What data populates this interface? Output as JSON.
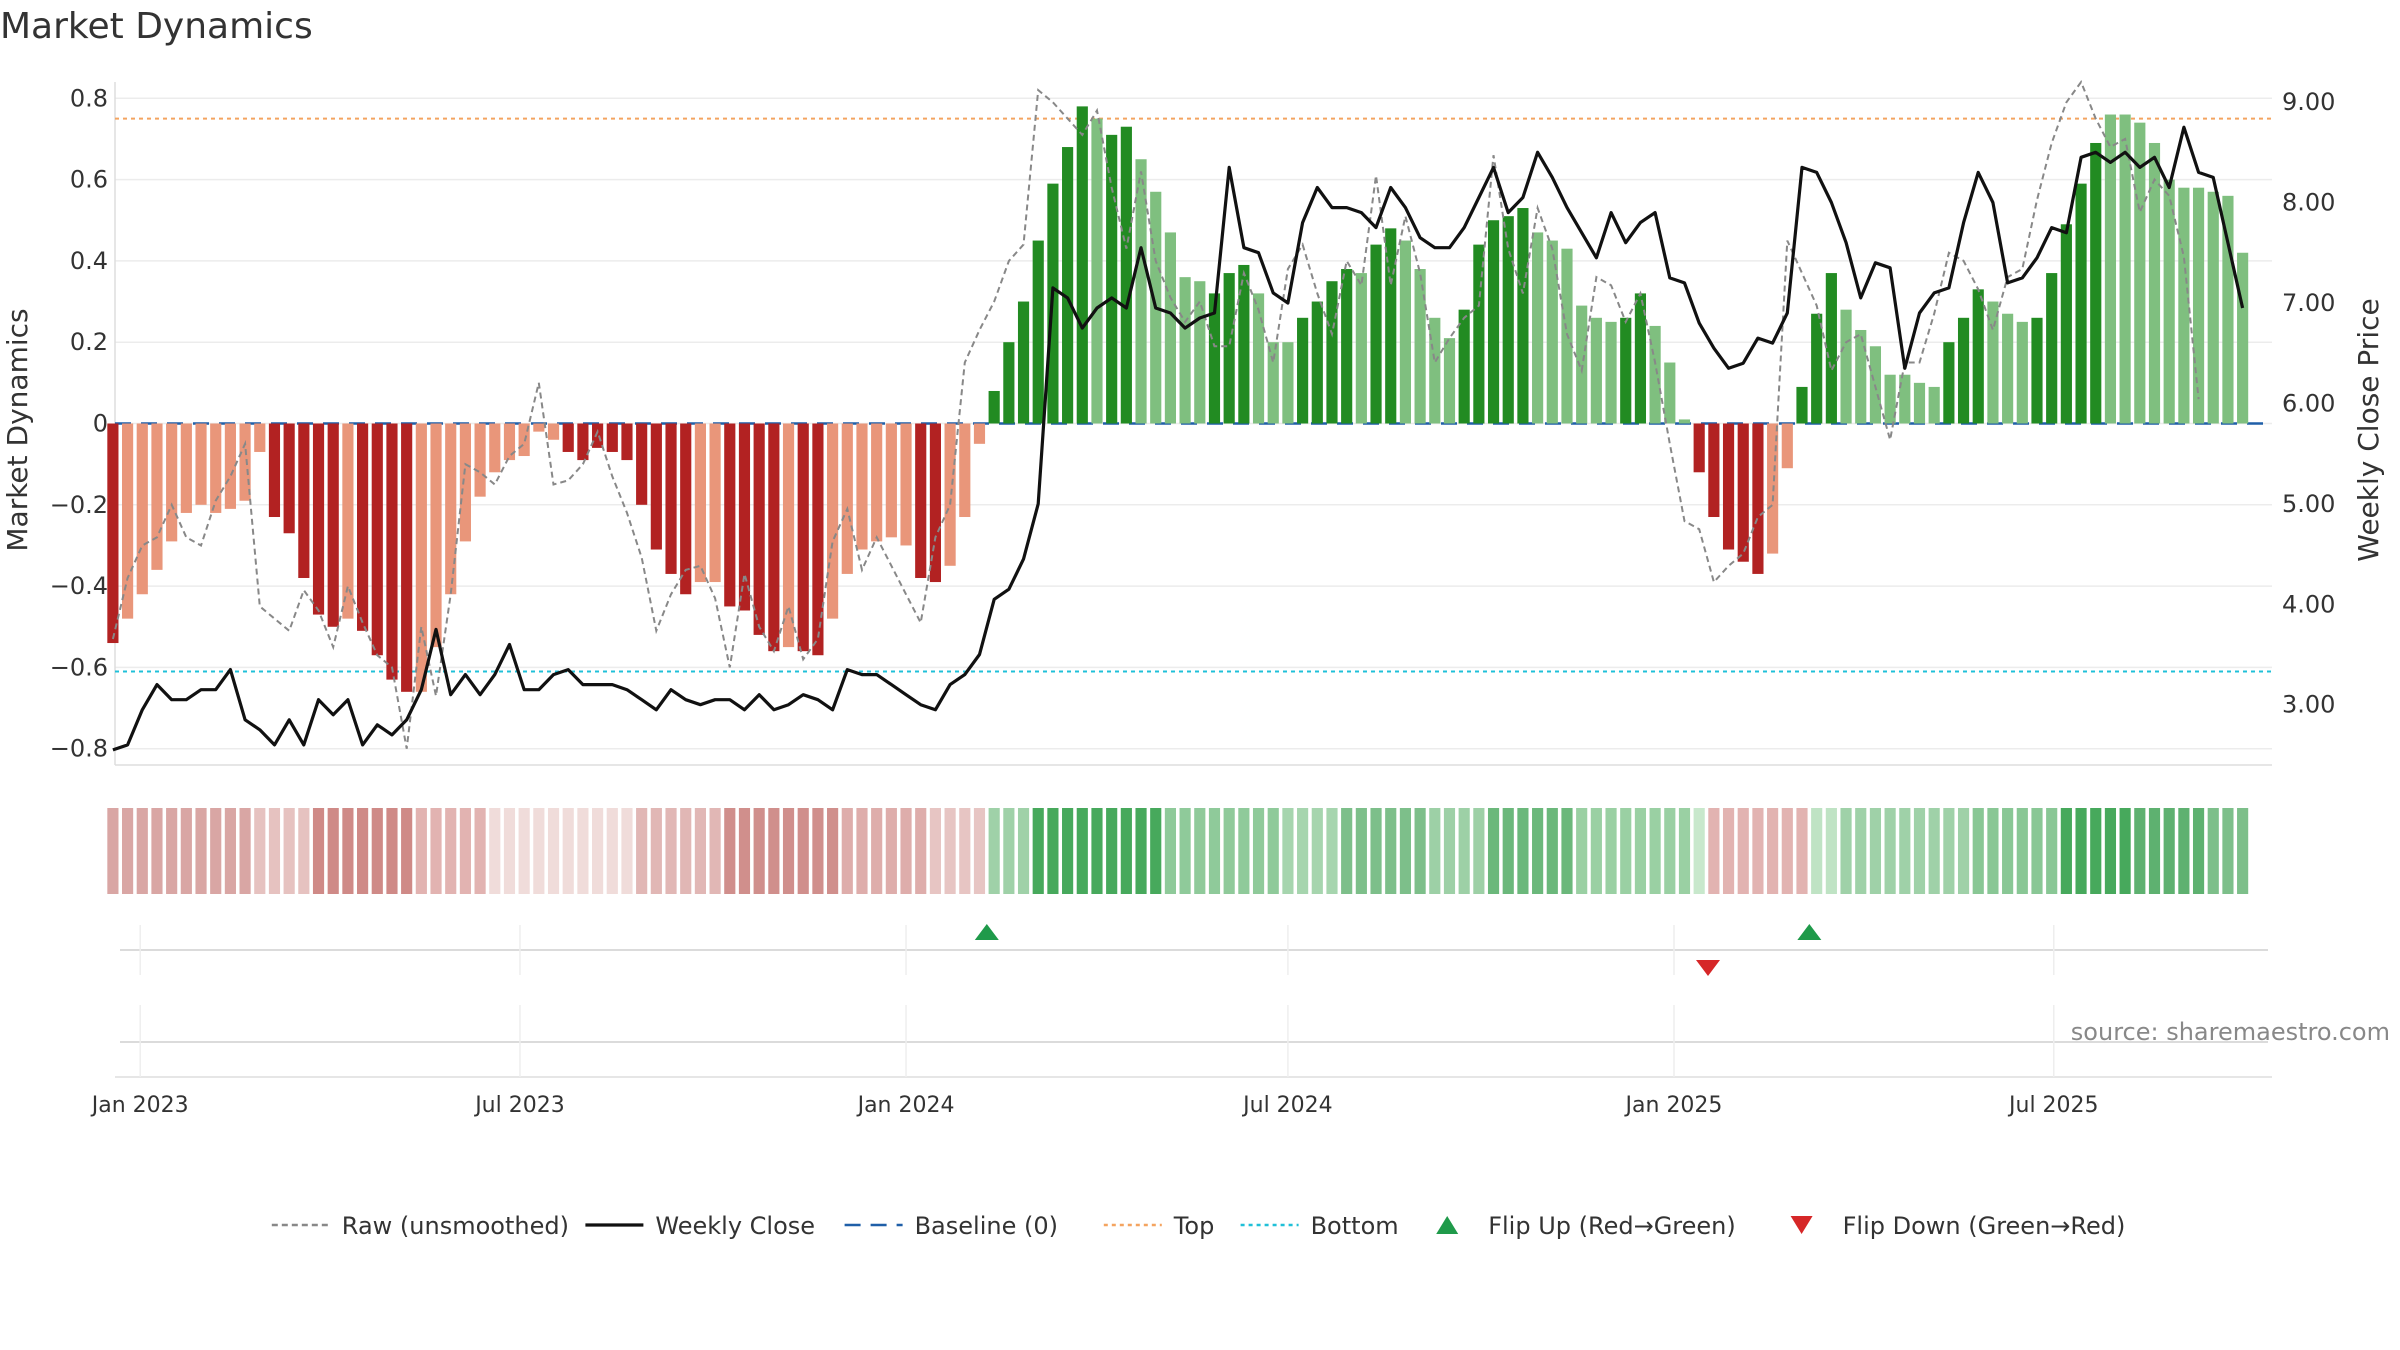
{
  "chart_data": {
    "type": "bar",
    "title": "Market Dynamics",
    "ylabel_left": "Market Dynamics",
    "ylabel_right": "Weekly Close Price",
    "source": "source: sharemaestro.com",
    "ylim_left": [
      -0.84,
      0.84
    ],
    "ylim_right": [
      2.4,
      9.2
    ],
    "yticks_left": [
      "0.8",
      "0.6",
      "0.4",
      "0.2",
      "0",
      "−0.2",
      "−0.4",
      "−0.6",
      "−0.8"
    ],
    "yticks_left_values": [
      0.8,
      0.6,
      0.4,
      0.2,
      0,
      -0.2,
      -0.4,
      -0.6,
      -0.8
    ],
    "yticks_right": [
      "9.00",
      "8.00",
      "7.00",
      "6.00",
      "5.00",
      "4.00",
      "3.00"
    ],
    "yticks_right_values": [
      9,
      8,
      7,
      6,
      5,
      4,
      3
    ],
    "x_start": "2022-12-20",
    "x_end": "2025-10-13",
    "xticks": [
      {
        "date": "2023-01-01",
        "label": "Jan 2023"
      },
      {
        "date": "2023-07-01",
        "label": "Jul 2023"
      },
      {
        "date": "2024-01-01",
        "label": "Jan 2024"
      },
      {
        "date": "2024-07-01",
        "label": "Jul 2024"
      },
      {
        "date": "2025-01-01",
        "label": "Jan 2025"
      },
      {
        "date": "2025-07-01",
        "label": "Jul 2025"
      }
    ],
    "first_week": "2022-12-19",
    "grid": true,
    "legend_position": "bottom",
    "reference_lines": {
      "baseline": 0,
      "top": 0.75,
      "bottom": -0.61
    },
    "colors": {
      "strong_up": "#228B22",
      "weak_up": "#7FBF7F",
      "strong_down": "#B22222",
      "weak_down": "#E9967A",
      "raw": "#888888",
      "close": "#111111",
      "baseline": "#1f5fa8",
      "top": "#f4a460",
      "bottom": "#20c0d8",
      "flip_up": "#1f9a4a",
      "flip_down": "#d62728"
    },
    "series": [
      {
        "name": "Market Dynamics",
        "values": [
          -0.54,
          -0.48,
          -0.42,
          -0.36,
          -0.29,
          -0.22,
          -0.2,
          -0.22,
          -0.21,
          -0.19,
          -0.07,
          -0.23,
          -0.27,
          -0.38,
          -0.47,
          -0.5,
          -0.48,
          -0.51,
          -0.57,
          -0.63,
          -0.66,
          -0.66,
          -0.55,
          -0.42,
          -0.29,
          -0.18,
          -0.12,
          -0.09,
          -0.08,
          -0.02,
          -0.04,
          -0.07,
          -0.09,
          -0.06,
          -0.07,
          -0.09,
          -0.2,
          -0.31,
          -0.37,
          -0.42,
          -0.39,
          -0.39,
          -0.45,
          -0.46,
          -0.52,
          -0.56,
          -0.55,
          -0.56,
          -0.57,
          -0.48,
          -0.37,
          -0.31,
          -0.29,
          -0.28,
          -0.3,
          -0.38,
          -0.39,
          -0.35,
          -0.23,
          -0.05,
          0.08,
          0.2,
          0.3,
          0.45,
          0.59,
          0.68,
          0.78,
          0.75,
          0.71,
          0.73,
          0.65,
          0.57,
          0.47,
          0.36,
          0.35,
          0.32,
          0.37,
          0.39,
          0.32,
          0.2,
          0.2,
          0.26,
          0.3,
          0.35,
          0.38,
          0.37,
          0.44,
          0.48,
          0.45,
          0.38,
          0.26,
          0.21,
          0.28,
          0.44,
          0.5,
          0.51,
          0.53,
          0.47,
          0.45,
          0.43,
          0.29,
          0.26,
          0.25,
          0.26,
          0.32,
          0.24,
          0.15,
          0.01,
          -0.12,
          -0.23,
          -0.31,
          -0.34,
          -0.37,
          -0.32,
          -0.11,
          0.09,
          0.27,
          0.37,
          0.28,
          0.23,
          0.19,
          0.12,
          0.12,
          0.1,
          0.09,
          0.2,
          0.26,
          0.33,
          0.3,
          0.27,
          0.25,
          0.26,
          0.37,
          0.49,
          0.59,
          0.69,
          0.76,
          0.76,
          0.74,
          0.69,
          0.6,
          0.58,
          0.58,
          0.57,
          0.56,
          0.42
        ],
        "strength": [
          "s",
          "w",
          "w",
          "w",
          "w",
          "w",
          "w",
          "w",
          "w",
          "w",
          "w",
          "s",
          "s",
          "s",
          "s",
          "s",
          "w",
          "s",
          "s",
          "s",
          "s",
          "w",
          "w",
          "w",
          "w",
          "w",
          "w",
          "w",
          "w",
          "w",
          "w",
          "s",
          "s",
          "s",
          "s",
          "s",
          "s",
          "s",
          "s",
          "s",
          "w",
          "w",
          "s",
          "s",
          "s",
          "s",
          "w",
          "s",
          "s",
          "w",
          "w",
          "w",
          "w",
          "w",
          "w",
          "s",
          "s",
          "w",
          "w",
          "w",
          "s",
          "s",
          "s",
          "s",
          "s",
          "s",
          "s",
          "w",
          "s",
          "s",
          "w",
          "w",
          "w",
          "w",
          "w",
          "s",
          "s",
          "s",
          "w",
          "w",
          "w",
          "s",
          "s",
          "s",
          "s",
          "w",
          "s",
          "s",
          "w",
          "w",
          "w",
          "w",
          "s",
          "s",
          "s",
          "s",
          "s",
          "w",
          "w",
          "w",
          "w",
          "w",
          "w",
          "s",
          "s",
          "w",
          "w",
          "w",
          "s",
          "s",
          "s",
          "s",
          "s",
          "w",
          "w",
          "s",
          "s",
          "s",
          "w",
          "w",
          "w",
          "w",
          "w",
          "w",
          "w",
          "s",
          "s",
          "s",
          "w",
          "w",
          "w",
          "s",
          "s",
          "s",
          "s",
          "s",
          "w",
          "w",
          "w",
          "w",
          "w",
          "w",
          "w",
          "w",
          "w",
          "w"
        ]
      },
      {
        "name": "Weekly Close",
        "values": [
          2.55,
          2.6,
          2.95,
          3.2,
          3.05,
          3.05,
          3.15,
          3.15,
          3.35,
          2.85,
          2.75,
          2.6,
          2.85,
          2.6,
          3.05,
          2.9,
          3.05,
          2.6,
          2.8,
          2.7,
          2.85,
          3.15,
          3.75,
          3.1,
          3.3,
          3.1,
          3.3,
          3.6,
          3.15,
          3.15,
          3.3,
          3.35,
          3.2,
          3.2,
          3.2,
          3.15,
          3.05,
          2.95,
          3.15,
          3.05,
          3,
          3.05,
          3.05,
          2.95,
          3.1,
          2.95,
          3,
          3.1,
          3.05,
          2.95,
          3.35,
          3.3,
          3.3,
          3.2,
          3.1,
          3,
          2.95,
          3.2,
          3.3,
          3.5,
          4.05,
          4.15,
          4.45,
          5,
          7.15,
          7.05,
          6.75,
          6.95,
          7.05,
          6.95,
          7.55,
          6.95,
          6.9,
          6.75,
          6.85,
          6.9,
          8.35,
          7.55,
          7.5,
          7.1,
          7,
          7.8,
          8.15,
          7.95,
          7.95,
          7.9,
          7.75,
          8.15,
          7.95,
          7.65,
          7.55,
          7.55,
          7.75,
          8.05,
          8.35,
          7.9,
          8.05,
          8.5,
          8.25,
          7.95,
          7.7,
          7.45,
          7.9,
          7.6,
          7.8,
          7.9,
          7.25,
          7.2,
          6.8,
          6.55,
          6.35,
          6.4,
          6.65,
          6.6,
          6.9,
          8.35,
          8.3,
          8.0,
          7.6,
          7.05,
          7.4,
          7.35,
          6.35,
          6.9,
          7.1,
          7.15,
          7.8,
          8.3,
          8.0,
          7.2,
          7.25,
          7.45,
          7.75,
          7.7,
          8.45,
          8.5,
          8.4,
          8.5,
          8.35,
          8.45,
          8.15,
          8.75,
          8.3,
          8.25,
          7.6,
          6.95
        ]
      },
      {
        "name": "Raw (unsmoothed)",
        "values": [
          -0.53,
          -0.38,
          -0.3,
          -0.28,
          -0.2,
          -0.28,
          -0.3,
          -0.19,
          -0.13,
          -0.05,
          -0.45,
          -0.48,
          -0.51,
          -0.41,
          -0.46,
          -0.55,
          -0.4,
          -0.49,
          -0.57,
          -0.6,
          -0.8,
          -0.5,
          -0.67,
          -0.42,
          -0.1,
          -0.12,
          -0.15,
          -0.08,
          -0.05,
          0.1,
          -0.15,
          -0.14,
          -0.1,
          -0.02,
          -0.13,
          -0.22,
          -0.33,
          -0.51,
          -0.42,
          -0.36,
          -0.35,
          -0.43,
          -0.6,
          -0.37,
          -0.5,
          -0.56,
          -0.45,
          -0.58,
          -0.53,
          -0.29,
          -0.21,
          -0.36,
          -0.28,
          -0.35,
          -0.42,
          -0.49,
          -0.28,
          -0.2,
          0.15,
          0.23,
          0.3,
          0.4,
          0.44,
          0.82,
          0.79,
          0.75,
          0.71,
          0.77,
          0.58,
          0.43,
          0.62,
          0.4,
          0.31,
          0.25,
          0.3,
          0.19,
          0.19,
          0.37,
          0.28,
          0.15,
          0.38,
          0.44,
          0.32,
          0.22,
          0.4,
          0.34,
          0.61,
          0.34,
          0.51,
          0.37,
          0.15,
          0.21,
          0.26,
          0.29,
          0.66,
          0.43,
          0.32,
          0.53,
          0.43,
          0.22,
          0.13,
          0.36,
          0.34,
          0.25,
          0.32,
          0.15,
          -0.05,
          -0.24,
          -0.26,
          -0.39,
          -0.35,
          -0.32,
          -0.23,
          -0.2,
          0.45,
          0.37,
          0.29,
          0.13,
          0.2,
          0.22,
          0.09,
          -0.04,
          0.15,
          0.15,
          0.27,
          0.42,
          0.4,
          0.33,
          0.23,
          0.36,
          0.38,
          0.55,
          0.69,
          0.79,
          0.84,
          0.75,
          0.68,
          0.7,
          0.52,
          0.6,
          0.56,
          0.41,
          0.06
        ]
      }
    ],
    "regime_strip": [
      {
        "week": 0,
        "color": "#d9a6a4"
      },
      {
        "week": 10,
        "color": "#e6c2c0"
      },
      {
        "week": 14,
        "color": "#cf8a87"
      },
      {
        "week": 21,
        "color": "#e2b3b1"
      },
      {
        "week": 26,
        "color": "#f0dcda"
      },
      {
        "week": 36,
        "color": "#e1b7b5"
      },
      {
        "week": 42,
        "color": "#d08f8c"
      },
      {
        "week": 50,
        "color": "#deadab"
      },
      {
        "week": 56,
        "color": "#e7c5c3"
      },
      {
        "week": 60,
        "color": "#9fd1a8"
      },
      {
        "week": 63,
        "color": "#47a95c"
      },
      {
        "week": 72,
        "color": "#8fca9a"
      },
      {
        "week": 80,
        "color": "#a6d5ae"
      },
      {
        "week": 84,
        "color": "#7dbf8a"
      },
      {
        "week": 90,
        "color": "#9dd0a6"
      },
      {
        "week": 94,
        "color": "#6bb87b"
      },
      {
        "week": 100,
        "color": "#9ad0a3"
      },
      {
        "week": 108,
        "color": "#c8e8cc"
      },
      {
        "week": 109,
        "color": "#e2b3b1"
      },
      {
        "week": 116,
        "color": "#bfe3c4"
      },
      {
        "week": 118,
        "color": "#9fd1a8"
      },
      {
        "week": 127,
        "color": "#89c795"
      },
      {
        "week": 133,
        "color": "#47a95c"
      },
      {
        "week": 138,
        "color": "#5eb170"
      },
      {
        "week": 143,
        "color": "#7dbf8a"
      }
    ],
    "flips": [
      {
        "week": 59.5,
        "direction": "up"
      },
      {
        "week": 108.6,
        "direction": "down"
      },
      {
        "week": 115.5,
        "direction": "up"
      }
    ],
    "legend": [
      {
        "label": "Raw (unsmoothed)",
        "kind": "line-dashed",
        "color": "#888888"
      },
      {
        "label": "Weekly Close",
        "kind": "line",
        "color": "#111111"
      },
      {
        "label": "Baseline (0)",
        "kind": "line-longdash",
        "color": "#1f5fa8"
      },
      {
        "label": "Top",
        "kind": "line-dotted",
        "color": "#f4a460"
      },
      {
        "label": "Bottom",
        "kind": "line-dotted",
        "color": "#20c0d8"
      },
      {
        "label": "Flip Up (Red→Green)",
        "kind": "triangle-up",
        "color": "#1f9a4a"
      },
      {
        "label": "Flip Down (Green→Red)",
        "kind": "triangle-down",
        "color": "#d62728"
      }
    ]
  }
}
